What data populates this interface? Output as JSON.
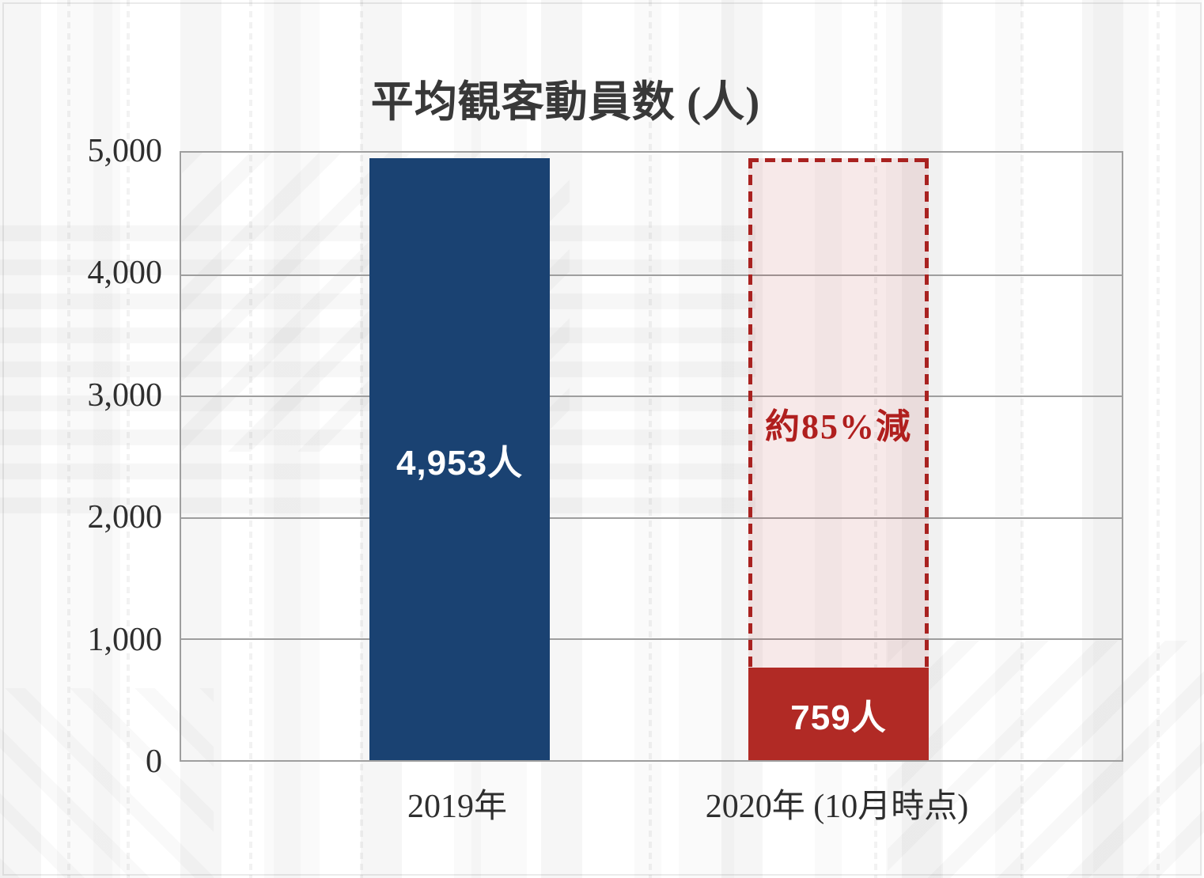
{
  "chart_data": {
    "type": "bar",
    "title": "平均観客動員数 (人)",
    "categories": [
      "2019年",
      "2020年 (10月時点)"
    ],
    "values": [
      4953,
      759
    ],
    "bar_value_labels": [
      "4,953人",
      "759人"
    ],
    "annotation": {
      "text": "約85%減",
      "reference_value": 4953
    },
    "ylim": [
      0,
      5000
    ],
    "ytick_labels": [
      "5,000",
      "4,000",
      "3,000",
      "2,000",
      "1,000",
      "0"
    ],
    "grid": true,
    "legend_position": "none",
    "colors": {
      "bar_2019": "#1a4272",
      "bar_2020": "#b12a25",
      "reference_outline": "#a92220",
      "reference_fill": "rgba(177,42,37,0.10)",
      "gridline": "#9e9e9e",
      "axis_text": "#2e2e2e",
      "annotation_text": "#b01f1e"
    }
  }
}
